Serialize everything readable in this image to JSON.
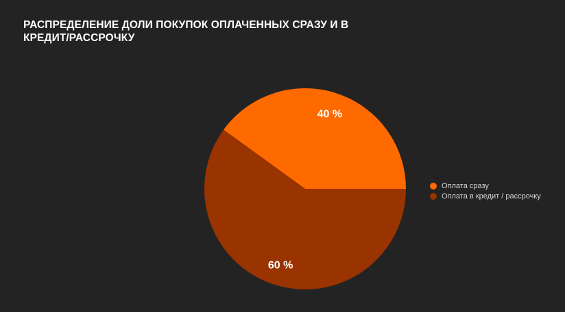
{
  "chart_data": {
    "type": "pie",
    "title": "РАСПРЕДЕЛЕНИЕ ДОЛИ ПОКУПОК ОПЛАЧЕННЫХ СРАЗУ И В КРЕДИТ/РАССРОЧКУ",
    "legend_position": "right",
    "slices": [
      {
        "name": "Оплата сразу",
        "value": 40,
        "label": "40 %",
        "color": "#FF6A00"
      },
      {
        "name": "Оплата в кредит / рассрочку",
        "value": 60,
        "label": "60 %",
        "color": "#993300"
      }
    ]
  }
}
